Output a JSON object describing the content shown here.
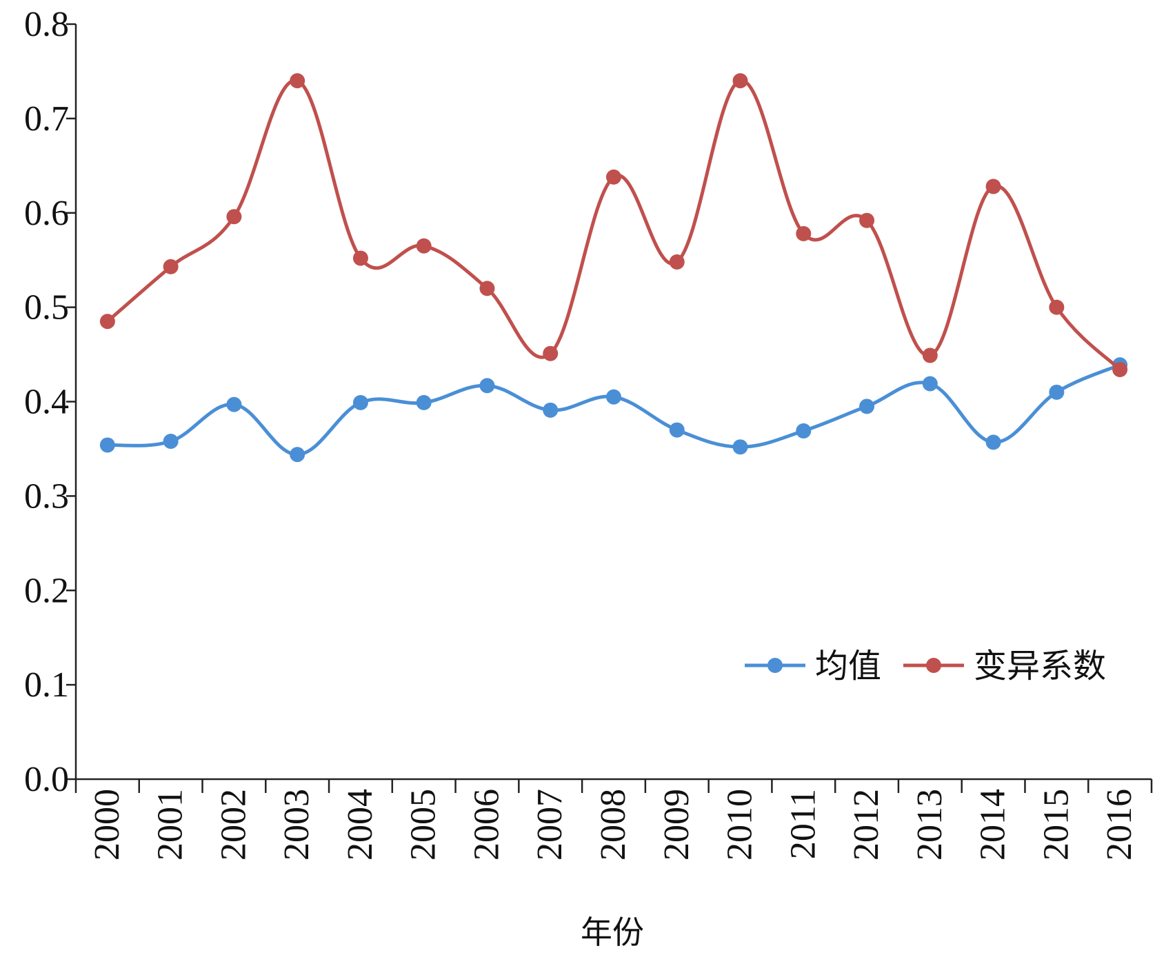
{
  "chart_data": {
    "type": "line",
    "xlabel": "年份",
    "ylabel": "",
    "ylim": [
      0,
      0.8
    ],
    "yticks": [
      "0.0",
      "0.1",
      "0.2",
      "0.3",
      "0.4",
      "0.5",
      "0.6",
      "0.7",
      "0.8"
    ],
    "categories": [
      "2000",
      "2001",
      "2002",
      "2003",
      "2004",
      "2005",
      "2006",
      "2007",
      "2008",
      "2009",
      "2010",
      "2011",
      "2012",
      "2013",
      "2014",
      "2015",
      "2016"
    ],
    "series": [
      {
        "name": "均值",
        "color": "#4a8fd6",
        "values": [
          0.354,
          0.358,
          0.397,
          0.344,
          0.399,
          0.399,
          0.417,
          0.391,
          0.405,
          0.37,
          0.352,
          0.369,
          0.395,
          0.419,
          0.357,
          0.41,
          0.439
        ]
      },
      {
        "name": "变异系数",
        "color": "#c0504d",
        "values": [
          0.485,
          0.543,
          0.596,
          0.74,
          0.552,
          0.565,
          0.52,
          0.451,
          0.638,
          0.548,
          0.74,
          0.578,
          0.592,
          0.449,
          0.628,
          0.5,
          0.434
        ]
      }
    ],
    "grid": false,
    "legend_position": "lower-right"
  }
}
